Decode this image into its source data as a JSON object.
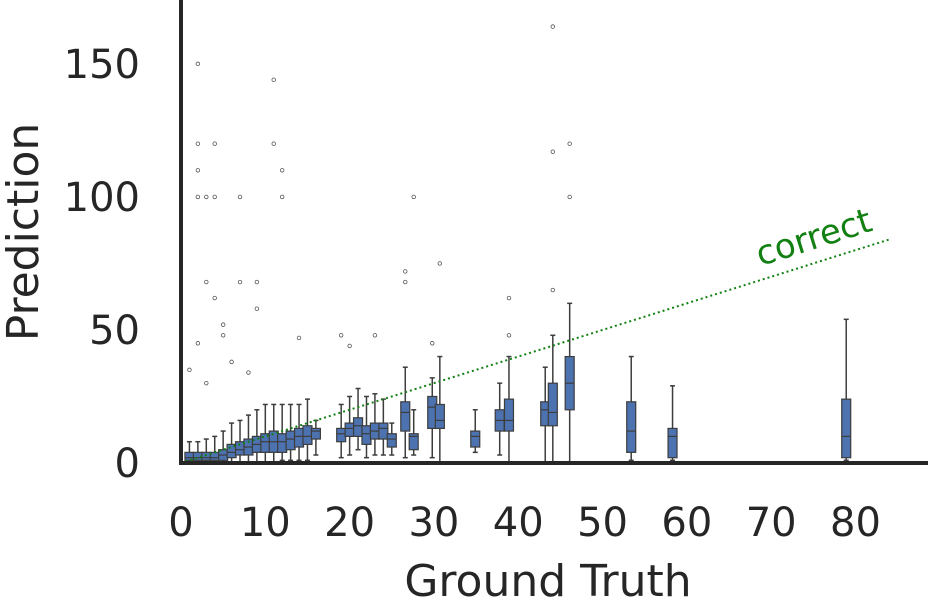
{
  "chart_data": {
    "type": "box",
    "x_label": "Ground Truth",
    "y_label": "Prediction",
    "color": "#4c72b0",
    "xlim": [
      0,
      88.6
    ],
    "ylim": [
      0,
      174
    ],
    "xticks": [
      0,
      10,
      20,
      30,
      40,
      50,
      60,
      70,
      80
    ],
    "yticks": [
      0,
      50,
      100,
      150
    ],
    "boxes": [
      {
        "x": 1,
        "whislo": 0,
        "q1": 1,
        "med": 2,
        "q3": 4,
        "whishi": 8
      },
      {
        "x": 2,
        "whislo": 0,
        "q1": 1,
        "med": 2,
        "q3": 4,
        "whishi": 8
      },
      {
        "x": 3,
        "whislo": 0,
        "q1": 1,
        "med": 2,
        "q3": 4,
        "whishi": 9
      },
      {
        "x": 4,
        "whislo": 0,
        "q1": 1,
        "med": 2,
        "q3": 4,
        "whishi": 10
      },
      {
        "x": 5,
        "whislo": 0,
        "q1": 1,
        "med": 3,
        "q3": 5,
        "whishi": 12
      },
      {
        "x": 6,
        "whislo": 0,
        "q1": 2,
        "med": 4,
        "q3": 7,
        "whishi": 15
      },
      {
        "x": 7,
        "whislo": 0,
        "q1": 3,
        "med": 5,
        "q3": 8,
        "whishi": 16
      },
      {
        "x": 8,
        "whislo": 0,
        "q1": 3,
        "med": 6,
        "q3": 9,
        "whishi": 18
      },
      {
        "x": 9,
        "whislo": 0,
        "q1": 4,
        "med": 7,
        "q3": 10,
        "whishi": 20
      },
      {
        "x": 10,
        "whislo": 0,
        "q1": 4,
        "med": 8,
        "q3": 11,
        "whishi": 22
      },
      {
        "x": 11,
        "whislo": 0,
        "q1": 4,
        "med": 8,
        "q3": 12,
        "whishi": 22
      },
      {
        "x": 12,
        "whislo": 1,
        "q1": 4,
        "med": 8,
        "q3": 11,
        "whishi": 22
      },
      {
        "x": 13,
        "whislo": 1,
        "q1": 5,
        "med": 9,
        "q3": 12,
        "whishi": 22
      },
      {
        "x": 14,
        "whislo": 1,
        "q1": 6,
        "med": 10,
        "q3": 13,
        "whishi": 22
      },
      {
        "x": 15,
        "whislo": 1,
        "q1": 7,
        "med": 10,
        "q3": 14,
        "whishi": 24
      },
      {
        "x": 16,
        "whislo": 3,
        "q1": 9,
        "med": 12,
        "q3": 13,
        "whishi": 16
      },
      {
        "x": 19,
        "whislo": 2,
        "q1": 8,
        "med": 11,
        "q3": 13,
        "whishi": 22
      },
      {
        "x": 20,
        "whislo": 3,
        "q1": 10,
        "med": 13,
        "q3": 15,
        "whishi": 25
      },
      {
        "x": 21,
        "whislo": 5,
        "q1": 10,
        "med": 14,
        "q3": 17,
        "whishi": 28
      },
      {
        "x": 22,
        "whislo": 2,
        "q1": 7,
        "med": 11,
        "q3": 14,
        "whishi": 25
      },
      {
        "x": 23,
        "whislo": 3,
        "q1": 9,
        "med": 12,
        "q3": 15,
        "whishi": 26
      },
      {
        "x": 24,
        "whislo": 3,
        "q1": 9,
        "med": 13,
        "q3": 15,
        "whishi": 24
      },
      {
        "x": 25,
        "whislo": 3,
        "q1": 6,
        "med": 9,
        "q3": 11,
        "whishi": 15
      },
      {
        "x": 26.6,
        "whislo": 2,
        "q1": 12,
        "med": 19,
        "q3": 23,
        "whishi": 36
      },
      {
        "x": 27.6,
        "whislo": 3,
        "q1": 5,
        "med": 10,
        "q3": 11,
        "whishi": 20
      },
      {
        "x": 29.8,
        "whislo": 2,
        "q1": 13,
        "med": 21,
        "q3": 25,
        "whishi": 32
      },
      {
        "x": 30.7,
        "whislo": 0,
        "q1": 13,
        "med": 16,
        "q3": 22,
        "whishi": 40
      },
      {
        "x": 34.9,
        "whislo": 4,
        "q1": 6,
        "med": 10,
        "q3": 12,
        "whishi": 20
      },
      {
        "x": 37.8,
        "whislo": 3,
        "q1": 12,
        "med": 16,
        "q3": 20,
        "whishi": 30
      },
      {
        "x": 38.9,
        "whislo": 0,
        "q1": 12,
        "med": 16,
        "q3": 24,
        "whishi": 40
      },
      {
        "x": 43.2,
        "whislo": 0,
        "q1": 14,
        "med": 20,
        "q3": 23,
        "whishi": 36
      },
      {
        "x": 44.1,
        "whislo": 0,
        "q1": 14,
        "med": 19,
        "q3": 30,
        "whishi": 48
      },
      {
        "x": 46.1,
        "whislo": 0,
        "q1": 20,
        "med": 30,
        "q3": 40,
        "whishi": 60
      },
      {
        "x": 53.4,
        "whislo": 1,
        "q1": 4,
        "med": 12,
        "q3": 23,
        "whishi": 40
      },
      {
        "x": 58.3,
        "whislo": 1,
        "q1": 2,
        "med": 10,
        "q3": 13,
        "whishi": 29
      },
      {
        "x": 78.9,
        "whislo": 1,
        "q1": 2,
        "med": 10,
        "q3": 24,
        "whishi": 54
      }
    ],
    "outliers": {
      "x": [
        2,
        2,
        2,
        2,
        3,
        4,
        4,
        4,
        3,
        7,
        7,
        9,
        9,
        11,
        11,
        12,
        12,
        5,
        5,
        14,
        19,
        20,
        23,
        26.6,
        26.6,
        27.6,
        29.8,
        30.7,
        38.9,
        38.9,
        44.1,
        44.1,
        44.1,
        46.1,
        46.1,
        2,
        1,
        3,
        6,
        8
      ],
      "y": [
        150,
        120,
        110,
        100,
        100,
        120,
        100,
        62,
        68,
        100,
        68,
        68,
        58,
        144,
        120,
        110,
        100,
        52,
        48,
        47,
        48,
        44,
        48,
        72,
        68,
        100,
        45,
        75,
        62,
        48,
        164,
        117,
        65,
        120,
        100,
        45,
        35,
        30,
        38,
        34
      ]
    },
    "reference_line": {
      "label": "correct",
      "color": "#128012",
      "x": [
        0,
        84
      ],
      "y": [
        0,
        84
      ]
    }
  }
}
